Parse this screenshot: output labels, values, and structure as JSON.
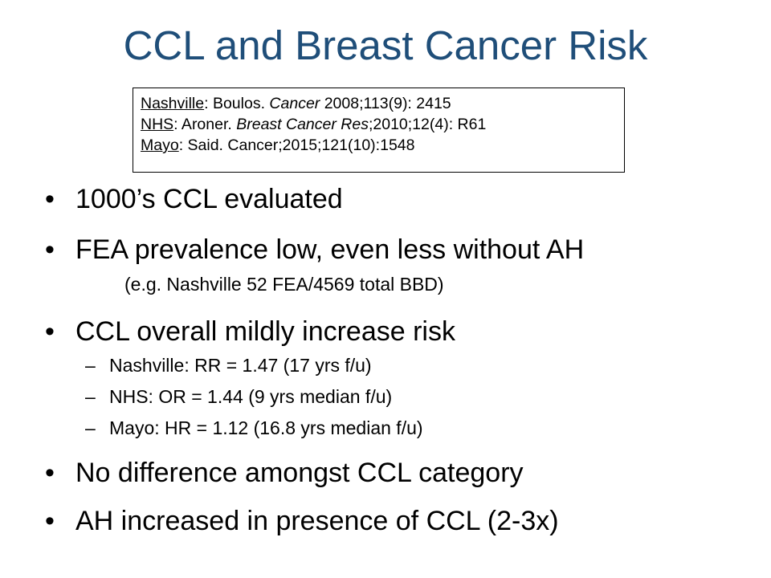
{
  "slide": {
    "title": "CCL and Breast Cancer Risk",
    "references": [
      {
        "site": "Nashville",
        "sep": ": Boulos. ",
        "journal": "Cancer",
        "detail": " 2008;113(9): 2415"
      },
      {
        "site": "NHS",
        "sep": ": Aroner. ",
        "journal": "Breast Cancer Res",
        "detail": ";2010;12(4): R61"
      },
      {
        "site": "Mayo",
        "sep": ": Said. Cancer;2015;121(10):1548"
      }
    ],
    "bullet_glyph": "•",
    "dash_glyph": "–",
    "bullets": [
      {
        "text": "1000’s CCL evaluated"
      },
      {
        "text": "FEA prevalence low, even less without AH",
        "note": "(e.g. Nashville 52 FEA/4569 total BBD)"
      },
      {
        "text": "CCL overall mildly increase risk",
        "subitems": [
          "Nashville: RR = 1.47 (17 yrs f/u)",
          "NHS: OR =  1.44 (9 yrs median f/u)",
          "Mayo: HR = 1.12 (16.8 yrs median f/u)"
        ]
      },
      {
        "text": "No difference amongst CCL category"
      },
      {
        "text": "AH increased in presence of CCL (2-3x)"
      }
    ]
  }
}
